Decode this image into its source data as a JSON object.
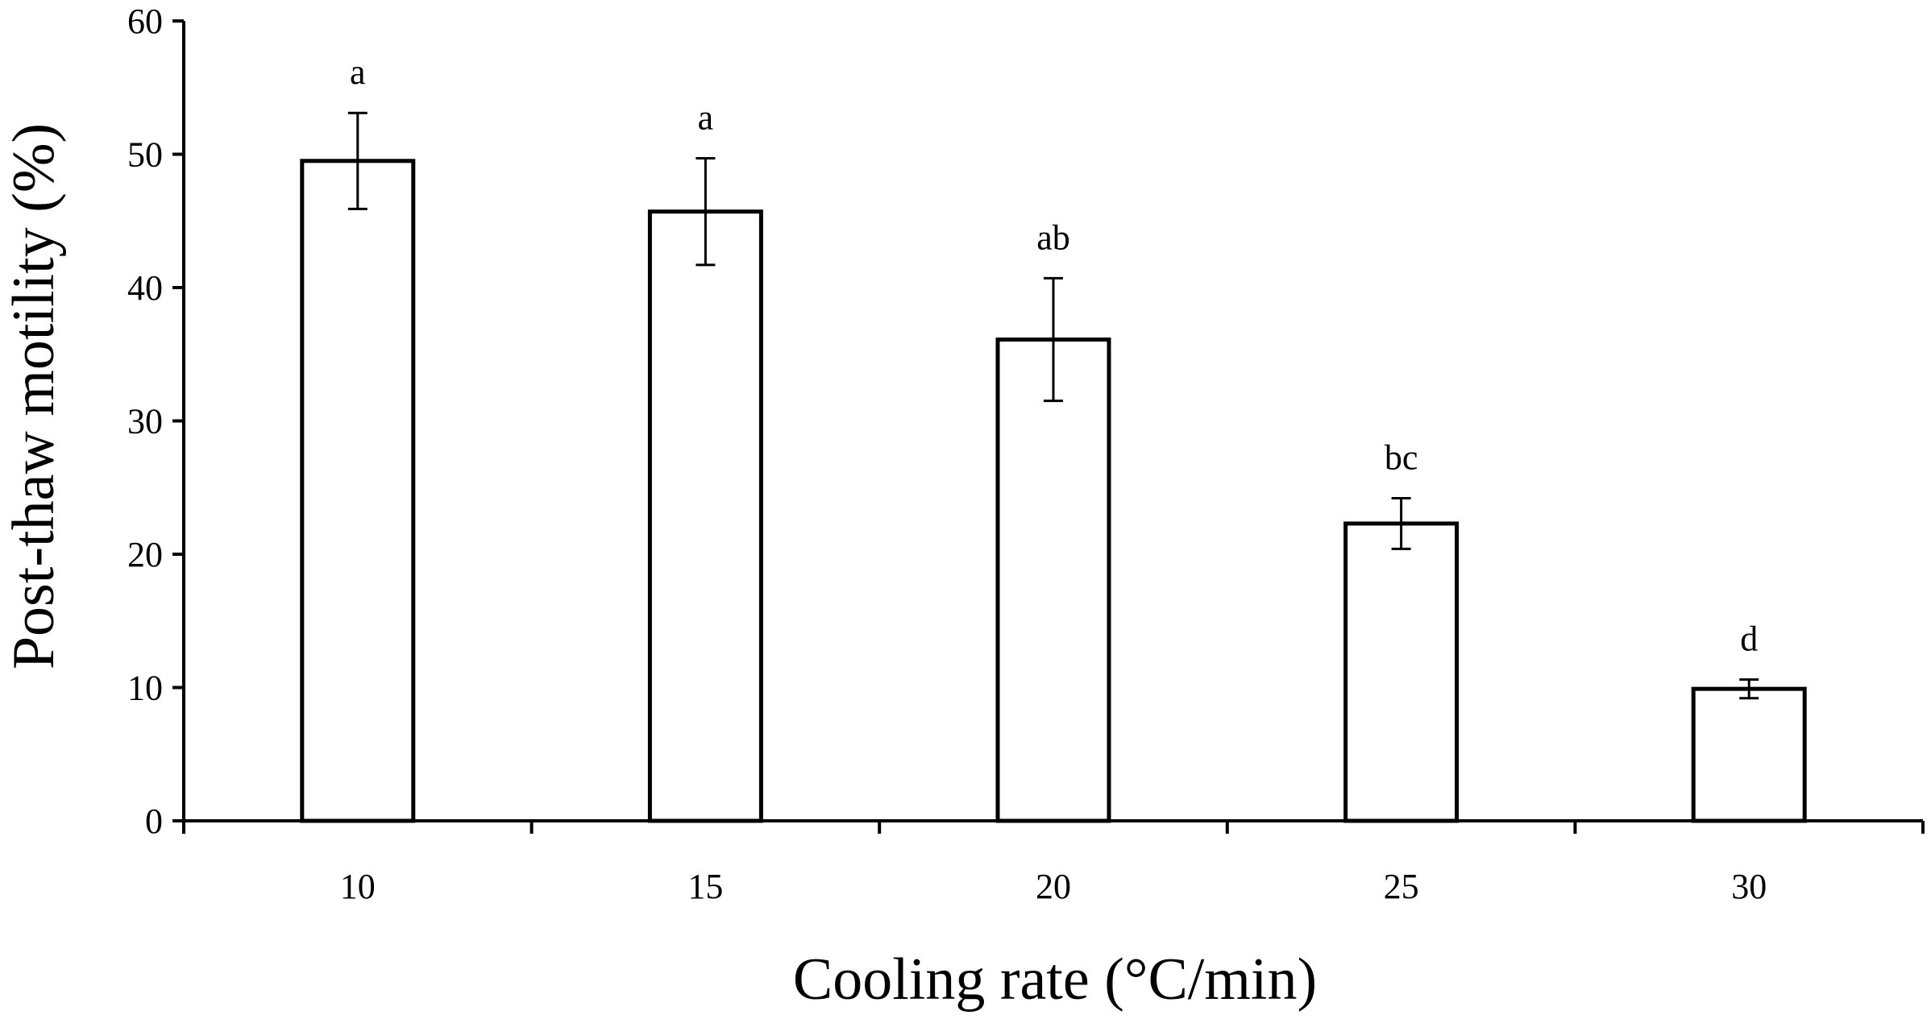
{
  "chart_data": {
    "type": "bar",
    "categories": [
      "10",
      "15",
      "20",
      "25",
      "30"
    ],
    "values": [
      49.5,
      45.7,
      36.1,
      22.3,
      9.9
    ],
    "error": [
      3.6,
      4.0,
      4.6,
      1.9,
      0.7
    ],
    "significance_letters": [
      "a",
      "a",
      "ab",
      "bc",
      "d"
    ],
    "title": "",
    "xlabel": "Cooling rate (°C/min)",
    "ylabel": "Post-thaw motility (%)",
    "ylim": [
      0,
      60
    ],
    "yticks": [
      "0",
      "10",
      "20",
      "30",
      "40",
      "50",
      "60"
    ],
    "grid": false,
    "legend": "none",
    "bar_fill": "#ffffff",
    "bar_stroke": "#000000"
  }
}
